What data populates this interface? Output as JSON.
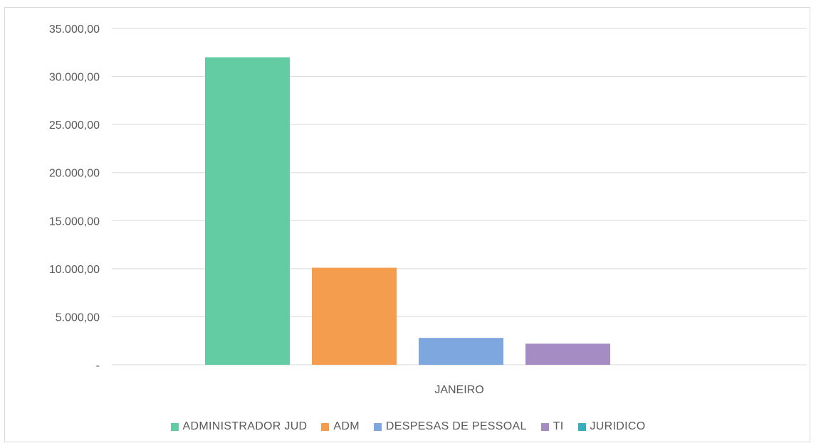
{
  "chart_data": {
    "type": "bar",
    "categories": [
      "JANEIRO"
    ],
    "series": [
      {
        "name": "ADMINISTRADOR JUD",
        "values": [
          32000
        ],
        "color": "#64cca2"
      },
      {
        "name": "ADM",
        "values": [
          10100
        ],
        "color": "#f59d4f"
      },
      {
        "name": "DESPESAS DE PESSOAL",
        "values": [
          2800
        ],
        "color": "#7ea7e0"
      },
      {
        "name": "TI",
        "values": [
          2200
        ],
        "color": "#a58dc4"
      },
      {
        "name": "JURIDICO",
        "values": [
          0
        ],
        "color": "#37adbe"
      }
    ],
    "yticks": [
      "-",
      "5.000,00",
      "10.000,00",
      "15.000,00",
      "20.000,00",
      "25.000,00",
      "30.000,00",
      "35.000,00"
    ],
    "ylim": [
      0,
      35000
    ],
    "grid": true,
    "legend_position": "bottom"
  }
}
